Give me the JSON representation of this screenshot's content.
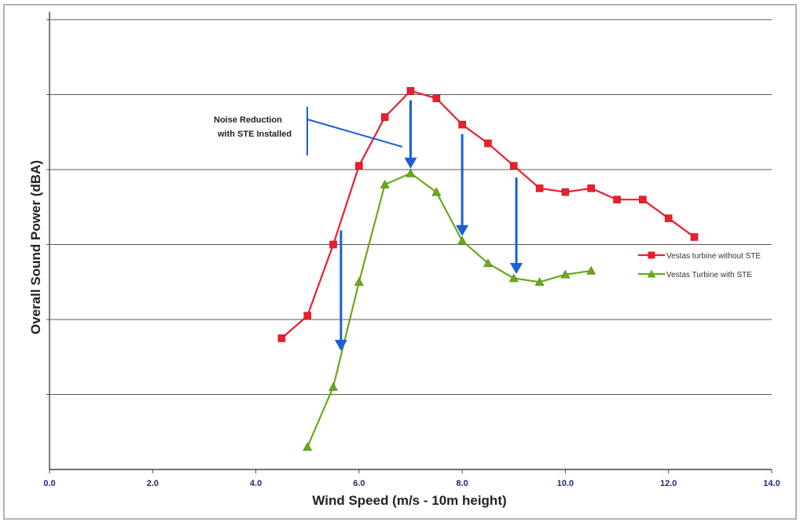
{
  "chart_data": {
    "type": "line",
    "title": "",
    "xlabel": "Wind Speed  (m/s - 10m height)",
    "ylabel": "Overall Sound Power (dBA)",
    "xlim": [
      0,
      14
    ],
    "x_ticks": [
      "0.0",
      "2.0",
      "4.0",
      "6.0",
      "8.0",
      "10.0",
      "12.0",
      "14.0"
    ],
    "ylim": [
      0,
      6
    ],
    "grid": "horizontal",
    "y_tick_labels_shown": false,
    "legend_position": "right",
    "series": [
      {
        "name": "Vestas turbine without STE",
        "color": "#e8202e",
        "marker": "square",
        "points": [
          [
            4.5,
            1.75
          ],
          [
            5.0,
            2.05
          ],
          [
            5.5,
            3.0
          ],
          [
            6.0,
            4.05
          ],
          [
            6.5,
            4.7
          ],
          [
            7.0,
            5.05
          ],
          [
            7.5,
            4.95
          ],
          [
            8.0,
            4.6
          ],
          [
            8.5,
            4.35
          ],
          [
            9.0,
            4.05
          ],
          [
            9.5,
            3.75
          ],
          [
            10.0,
            3.7
          ],
          [
            10.5,
            3.75
          ],
          [
            11.0,
            3.6
          ],
          [
            11.5,
            3.6
          ],
          [
            12.0,
            3.35
          ],
          [
            12.5,
            3.1
          ]
        ]
      },
      {
        "name": "Vestas Turbine with STE",
        "color": "#6aa819",
        "marker": "triangle",
        "points": [
          [
            5.0,
            0.3
          ],
          [
            5.5,
            1.1
          ],
          [
            6.0,
            2.5
          ],
          [
            6.5,
            3.8
          ],
          [
            7.0,
            3.95
          ],
          [
            7.5,
            3.7
          ],
          [
            8.0,
            3.05
          ],
          [
            8.5,
            2.75
          ],
          [
            9.0,
            2.55
          ],
          [
            9.5,
            2.5
          ],
          [
            10.0,
            2.6
          ],
          [
            10.5,
            2.65
          ]
        ]
      }
    ],
    "annotation": {
      "lines": [
        "Noise Reduction",
        "with STE Installed"
      ],
      "arrow_color": "#1a5fd6",
      "arrows_at_x": [
        5.65,
        7.0,
        8.0,
        9.05
      ]
    }
  }
}
